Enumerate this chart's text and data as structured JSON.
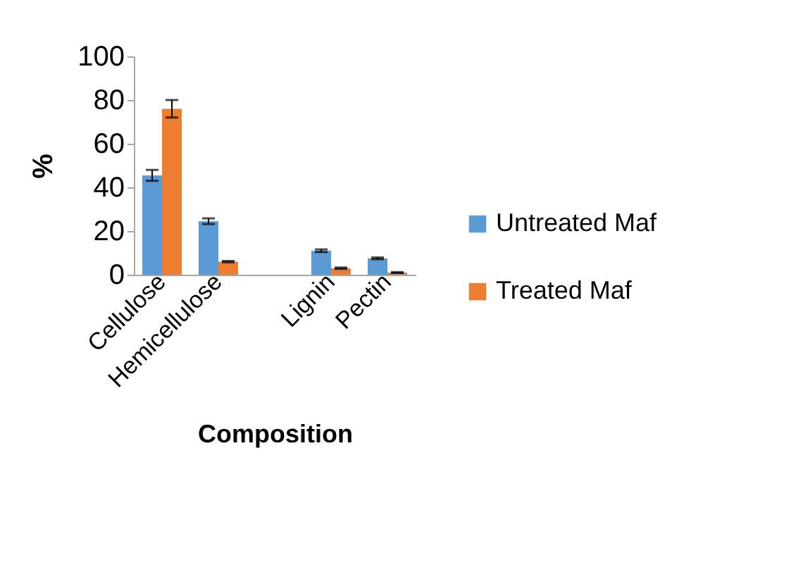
{
  "chart_data": {
    "type": "bar",
    "xlabel": "Composition",
    "ylabel": "%",
    "categories": [
      "Cellulose",
      "Hemicellulose",
      null,
      "Lignin",
      "Pectin"
    ],
    "series": [
      {
        "name": "Untreated Maf",
        "color": "#5b9bd5",
        "values": [
          45.5,
          24.5,
          null,
          11,
          7.5
        ],
        "errors": [
          2.5,
          1.3,
          null,
          0.6,
          0.4
        ]
      },
      {
        "name": "Treated Maf",
        "color": "#ed7d31",
        "values": [
          76,
          6,
          null,
          3,
          1
        ],
        "errors": [
          4,
          0.3,
          null,
          0.3,
          0.2
        ]
      }
    ],
    "ylim": [
      0,
      100
    ],
    "yticks": [
      0,
      20,
      40,
      60,
      80,
      100
    ],
    "grid": false,
    "legend": "right"
  }
}
